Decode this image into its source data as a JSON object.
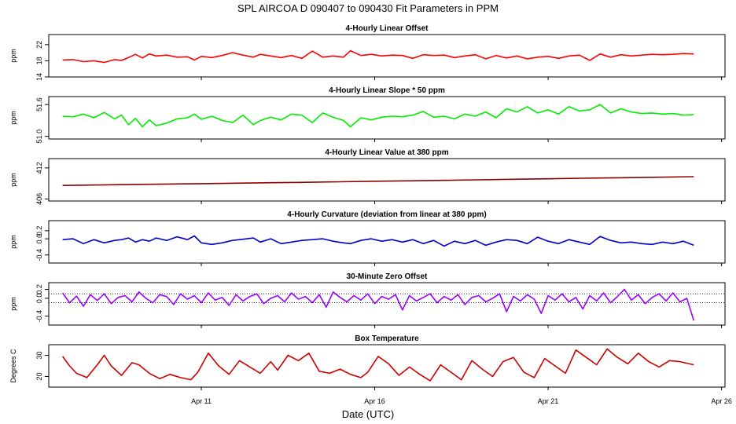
{
  "page_title": "SPL   AIRCOA D   090407 to 090430   Fit Parameters in PPM",
  "xlabel": "Date (UTC)",
  "x_axis": {
    "range": [
      6.6,
      26.1
    ],
    "ticks": [
      {
        "v": 11,
        "label": "Apr 11"
      },
      {
        "v": 16,
        "label": "Apr 16"
      },
      {
        "v": 21,
        "label": "Apr 21"
      },
      {
        "v": 26,
        "label": "Apr 26"
      }
    ]
  },
  "chart_data": [
    {
      "type": "line",
      "title": "4-Hourly Linear Offset",
      "ylabel": "ppm",
      "ylim": [
        14,
        24.5
      ],
      "yticks": [
        {
          "v": 14,
          "label": "14"
        },
        {
          "v": 18,
          "label": "18"
        },
        {
          "v": 22,
          "label": "22"
        }
      ],
      "series": [
        {
          "color": "#ff0000",
          "x": [
            7.0,
            7.3,
            7.6,
            7.9,
            8.2,
            8.5,
            8.7,
            8.9,
            9.1,
            9.3,
            9.5,
            9.7,
            10.0,
            10.3,
            10.6,
            10.8,
            11.0,
            11.3,
            11.6,
            11.9,
            12.2,
            12.5,
            12.7,
            13.0,
            13.3,
            13.6,
            13.9,
            14.2,
            14.5,
            14.8,
            15.1,
            15.3,
            15.6,
            15.9,
            16.2,
            16.5,
            16.8,
            17.1,
            17.4,
            17.7,
            18.0,
            18.3,
            18.6,
            18.9,
            19.2,
            19.5,
            19.8,
            20.1,
            20.4,
            20.7,
            21.0,
            21.3,
            21.6,
            21.9,
            22.2,
            22.5,
            22.8,
            23.1,
            23.4,
            23.7,
            24.0,
            24.3,
            24.6,
            24.9,
            25.2
          ],
          "y": [
            18.2,
            18.3,
            17.8,
            18.0,
            17.6,
            18.3,
            18.1,
            18.8,
            19.6,
            18.7,
            19.7,
            19.2,
            19.4,
            18.9,
            19.0,
            18.2,
            19.1,
            18.8,
            19.3,
            20.0,
            19.4,
            18.9,
            19.6,
            19.2,
            18.8,
            19.3,
            18.6,
            20.4,
            18.9,
            19.2,
            18.9,
            20.5,
            19.3,
            19.6,
            19.2,
            19.4,
            19.3,
            18.6,
            19.5,
            19.3,
            19.4,
            18.8,
            19.2,
            19.5,
            18.5,
            19.3,
            18.7,
            19.2,
            18.5,
            18.9,
            19.1,
            18.6,
            19.2,
            19.4,
            18.1,
            19.7,
            18.9,
            19.5,
            19.2,
            19.4,
            19.6,
            19.5,
            19.6,
            19.8,
            19.7
          ]
        }
      ]
    },
    {
      "type": "line",
      "title": "4-Hourly Linear Slope * 50 ppm",
      "ylabel": "ppm",
      "ylim": [
        50.95,
        51.75
      ],
      "yticks": [
        {
          "v": 51.0,
          "label": "51.0"
        },
        {
          "v": 51.6,
          "label": "51.6"
        }
      ],
      "series": [
        {
          "color": "#00ee00",
          "x": [
            7.0,
            7.3,
            7.6,
            7.9,
            8.2,
            8.5,
            8.7,
            8.9,
            9.1,
            9.3,
            9.5,
            9.7,
            10.0,
            10.3,
            10.6,
            10.8,
            11.0,
            11.3,
            11.6,
            11.9,
            12.2,
            12.5,
            12.7,
            13.0,
            13.3,
            13.6,
            13.9,
            14.2,
            14.5,
            14.8,
            15.1,
            15.3,
            15.6,
            15.9,
            16.2,
            16.5,
            16.8,
            17.1,
            17.4,
            17.7,
            18.0,
            18.3,
            18.6,
            18.9,
            19.2,
            19.5,
            19.8,
            20.1,
            20.4,
            20.7,
            21.0,
            21.3,
            21.6,
            21.9,
            22.2,
            22.5,
            22.8,
            23.1,
            23.4,
            23.7,
            24.0,
            24.3,
            24.6,
            24.9,
            25.2
          ],
          "y": [
            51.38,
            51.37,
            51.42,
            51.35,
            51.45,
            51.33,
            51.4,
            51.22,
            51.34,
            51.18,
            51.31,
            51.2,
            51.25,
            51.33,
            51.35,
            51.42,
            51.32,
            51.38,
            51.3,
            51.26,
            51.4,
            51.22,
            51.3,
            51.36,
            51.31,
            51.42,
            51.4,
            51.26,
            51.44,
            51.36,
            51.3,
            51.18,
            51.35,
            51.31,
            51.36,
            51.38,
            51.37,
            51.4,
            51.47,
            51.36,
            51.38,
            51.33,
            51.42,
            51.38,
            51.46,
            51.35,
            51.52,
            51.46,
            51.56,
            51.44,
            51.5,
            51.42,
            51.56,
            51.48,
            51.5,
            51.6,
            51.44,
            51.52,
            51.46,
            51.43,
            51.44,
            51.42,
            51.43,
            51.4,
            51.41
          ]
        }
      ]
    },
    {
      "type": "line",
      "title": "4-Hourly Linear Value at 380 ppm",
      "ylabel": "ppm",
      "ylim": [
        405.6,
        413.8
      ],
      "yticks": [
        {
          "v": 406,
          "label": "406"
        },
        {
          "v": 412,
          "label": "412"
        }
      ],
      "series": [
        {
          "color": "#8b0000",
          "x": [
            7.0,
            8.0,
            9.0,
            10.0,
            11.0,
            12.0,
            13.0,
            14.0,
            15.0,
            16.0,
            17.0,
            18.0,
            19.0,
            20.0,
            21.0,
            22.0,
            23.0,
            24.0,
            25.2
          ],
          "y": [
            408.6,
            408.7,
            408.8,
            408.88,
            408.96,
            409.05,
            409.14,
            409.22,
            409.32,
            409.42,
            409.5,
            409.6,
            409.7,
            409.8,
            409.9,
            410.0,
            410.1,
            410.18,
            410.3
          ]
        }
      ]
    },
    {
      "type": "line",
      "title": "4-Hourly Curvature (deviation from linear at 380 ppm)",
      "ylabel": "ppm",
      "ylim": [
        -0.6,
        0.45
      ],
      "yticks": [
        {
          "v": -0.4,
          "label": "-0.4"
        },
        {
          "v": 0.0,
          "label": "0.0"
        },
        {
          "v": 0.2,
          "label": "0.2"
        }
      ],
      "series": [
        {
          "color": "#0000cc",
          "x": [
            7.0,
            7.3,
            7.6,
            7.9,
            8.2,
            8.5,
            8.7,
            8.9,
            9.1,
            9.3,
            9.5,
            9.7,
            10.0,
            10.3,
            10.6,
            10.8,
            11.0,
            11.3,
            11.6,
            11.9,
            12.2,
            12.5,
            12.7,
            13.0,
            13.3,
            13.6,
            13.9,
            14.2,
            14.5,
            14.8,
            15.1,
            15.3,
            15.6,
            15.9,
            16.2,
            16.5,
            16.8,
            17.1,
            17.4,
            17.7,
            18.0,
            18.3,
            18.6,
            18.9,
            19.2,
            19.5,
            19.8,
            20.1,
            20.4,
            20.7,
            21.0,
            21.3,
            21.6,
            21.9,
            22.2,
            22.5,
            22.8,
            23.1,
            23.4,
            23.7,
            24.0,
            24.3,
            24.6,
            24.9,
            25.2
          ],
          "y": [
            -0.02,
            0.0,
            -0.12,
            -0.02,
            -0.1,
            -0.04,
            -0.02,
            0.02,
            -0.08,
            -0.02,
            -0.06,
            0.02,
            -0.04,
            0.05,
            -0.02,
            0.07,
            -0.1,
            -0.14,
            -0.1,
            -0.04,
            -0.01,
            0.02,
            -0.08,
            0.0,
            -0.12,
            -0.08,
            -0.04,
            -0.02,
            0.0,
            -0.06,
            -0.1,
            -0.12,
            -0.04,
            0.0,
            -0.06,
            -0.02,
            -0.08,
            -0.02,
            -0.12,
            -0.04,
            -0.18,
            -0.06,
            -0.12,
            -0.04,
            -0.16,
            -0.08,
            -0.02,
            -0.04,
            -0.12,
            0.04,
            -0.06,
            -0.12,
            -0.02,
            -0.08,
            -0.14,
            0.06,
            -0.04,
            -0.1,
            -0.08,
            -0.12,
            -0.14,
            -0.08,
            -0.12,
            -0.06,
            -0.16
          ]
        }
      ]
    },
    {
      "type": "line",
      "title": "30-Minute Zero Offset",
      "ylabel": "ppm",
      "ylim": [
        -0.6,
        0.35
      ],
      "yticks": [
        {
          "v": -0.4,
          "label": "-0.4"
        },
        {
          "v": 0.0,
          "label": "0.0"
        },
        {
          "v": 0.2,
          "label": "0.2"
        }
      ],
      "reference_lines": [
        0.1,
        -0.1
      ],
      "series": [
        {
          "color": "#9900ff",
          "x": [
            7.0,
            7.2,
            7.4,
            7.6,
            7.8,
            8.0,
            8.2,
            8.4,
            8.6,
            8.8,
            9.0,
            9.2,
            9.4,
            9.6,
            9.8,
            10.0,
            10.2,
            10.4,
            10.6,
            10.8,
            11.0,
            11.2,
            11.4,
            11.6,
            11.8,
            12.0,
            12.2,
            12.4,
            12.6,
            12.8,
            13.0,
            13.2,
            13.4,
            13.6,
            13.8,
            14.0,
            14.2,
            14.4,
            14.6,
            14.8,
            15.0,
            15.2,
            15.4,
            15.6,
            15.8,
            16.0,
            16.2,
            16.4,
            16.6,
            16.8,
            17.0,
            17.2,
            17.4,
            17.6,
            17.8,
            18.0,
            18.2,
            18.4,
            18.6,
            18.8,
            19.0,
            19.2,
            19.4,
            19.6,
            19.8,
            20.0,
            20.2,
            20.4,
            20.6,
            20.8,
            21.0,
            21.2,
            21.4,
            21.6,
            21.8,
            22.0,
            22.2,
            22.4,
            22.6,
            22.8,
            23.0,
            23.2,
            23.4,
            23.6,
            23.8,
            24.0,
            24.2,
            24.4,
            24.6,
            24.8,
            25.0,
            25.2
          ],
          "y": [
            0.12,
            -0.1,
            0.05,
            -0.18,
            0.08,
            -0.05,
            0.1,
            -0.12,
            0.02,
            0.06,
            -0.08,
            0.14,
            0.0,
            -0.1,
            0.08,
            0.04,
            -0.14,
            0.1,
            -0.02,
            0.06,
            -0.1,
            0.12,
            -0.04,
            0.02,
            -0.16,
            0.08,
            -0.06,
            0.04,
            0.1,
            -0.12,
            0.0,
            0.06,
            -0.08,
            0.12,
            -0.02,
            0.04,
            -0.1,
            0.08,
            -0.2,
            0.14,
            0.02,
            -0.08,
            0.06,
            -0.04,
            0.1,
            -0.12,
            0.04,
            -0.02,
            0.08,
            -0.26,
            0.06,
            -0.06,
            0.02,
            0.1,
            -0.1,
            0.04,
            -0.04,
            0.08,
            -0.14,
            0.02,
            0.06,
            -0.08,
            0.0,
            0.1,
            -0.3,
            0.04,
            -0.06,
            0.08,
            -0.02,
            -0.34,
            0.06,
            -0.04,
            0.1,
            -0.08,
            0.02,
            -0.24,
            0.06,
            -0.06,
            0.12,
            -0.1,
            0.04,
            0.2,
            -0.04,
            0.08,
            -0.12,
            0.02,
            0.1,
            -0.06,
            0.12,
            -0.08,
            0.0,
            -0.5
          ]
        }
      ]
    },
    {
      "type": "line",
      "title": "Box Temperature",
      "ylabel": "Degrees C",
      "ylim": [
        15,
        35
      ],
      "yticks": [
        {
          "v": 20,
          "label": "20"
        },
        {
          "v": 30,
          "label": "30"
        }
      ],
      "series": [
        {
          "color": "#cc0000",
          "x": [
            7.0,
            7.2,
            7.4,
            7.7,
            8.0,
            8.2,
            8.4,
            8.7,
            9.0,
            9.2,
            9.5,
            9.8,
            10.1,
            10.4,
            10.7,
            10.9,
            11.2,
            11.5,
            11.8,
            12.1,
            12.4,
            12.7,
            13.0,
            13.2,
            13.5,
            13.8,
            14.1,
            14.4,
            14.7,
            15.0,
            15.3,
            15.6,
            15.8,
            16.1,
            16.4,
            16.7,
            17.0,
            17.3,
            17.6,
            17.9,
            18.2,
            18.5,
            18.8,
            19.1,
            19.4,
            19.7,
            20.0,
            20.3,
            20.6,
            20.9,
            21.2,
            21.5,
            21.8,
            22.1,
            22.4,
            22.7,
            23.0,
            23.3,
            23.6,
            23.9,
            24.2,
            24.5,
            24.8,
            25.2
          ],
          "y": [
            29.5,
            25.0,
            21.5,
            19.5,
            25.5,
            30.0,
            25.0,
            20.5,
            26.5,
            25.5,
            21.5,
            19.0,
            21.0,
            19.5,
            18.5,
            22.0,
            31.0,
            25.0,
            21.0,
            27.5,
            24.5,
            21.5,
            27.0,
            23.0,
            30.0,
            27.5,
            31.0,
            22.5,
            21.5,
            23.5,
            21.0,
            19.5,
            22.0,
            29.5,
            26.0,
            20.5,
            24.5,
            21.0,
            18.0,
            25.5,
            22.0,
            18.5,
            27.5,
            23.5,
            20.0,
            27.0,
            29.0,
            22.0,
            19.5,
            28.5,
            25.0,
            21.5,
            32.5,
            29.0,
            25.5,
            33.0,
            29.0,
            26.0,
            31.0,
            27.0,
            24.5,
            27.5,
            27.0,
            25.5
          ]
        }
      ]
    }
  ]
}
